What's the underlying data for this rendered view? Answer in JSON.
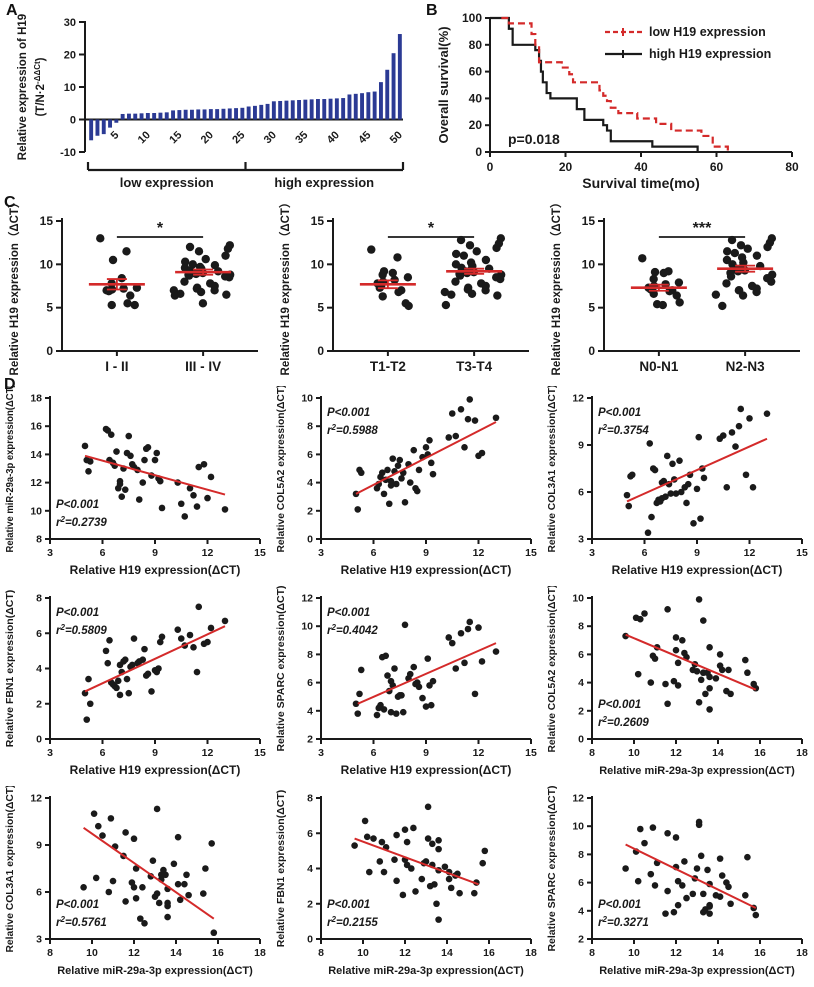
{
  "panel_labels": {
    "a": "A",
    "b": "B",
    "c": "C",
    "d": "D"
  },
  "palette": {
    "bar": "#2b3a94",
    "axis": "#1a1a1a",
    "dot": "#1a1a1a",
    "red": "#d42a2a"
  },
  "samples": {
    "h19": [
      5.0,
      5.1,
      5.2,
      5.3,
      6.2,
      6.3,
      6.4,
      6.5,
      6.6,
      6.7,
      6.8,
      6.9,
      7.0,
      7.0,
      7.1,
      7.2,
      7.3,
      7.4,
      7.5,
      7.6,
      7.7,
      7.8,
      8.0,
      8.1,
      8.3,
      8.4,
      8.5,
      8.6,
      8.8,
      9.0,
      9.1,
      9.2,
      9.3,
      9.4,
      10.3,
      10.5,
      10.7,
      11.0,
      11.2,
      11.4,
      11.5,
      11.8,
      12.0,
      12.2,
      13.0
    ],
    "mir29a": [
      14.6,
      13.6,
      12.8,
      13.5,
      15.8,
      15.7,
      13.6,
      15.4,
      13.4,
      13.2,
      14.2,
      11.6,
      12.1,
      11.9,
      11.0,
      13.0,
      11.5,
      14.1,
      15.3,
      13.9,
      13.3,
      13.1,
      12.9,
      10.8,
      12.0,
      13.6,
      14.4,
      14.5,
      12.5,
      13.6,
      14.1,
      12.3,
      12.1,
      10.2,
      12.0,
      10.5,
      9.6,
      11.6,
      11.1,
      10.3,
      13.1,
      13.3,
      10.9,
      12.4,
      10.1
    ],
    "col5a2": [
      3.2,
      2.1,
      4.9,
      4.7,
      3.6,
      3.9,
      4.4,
      4.7,
      3.2,
      4.2,
      4.9,
      2.5,
      3.8,
      4.1,
      5.7,
      4.8,
      3.9,
      5.2,
      5.6,
      4.3,
      4.7,
      2.6,
      5.3,
      4.0,
      6.3,
      3.6,
      3.4,
      4.9,
      5.8,
      6.5,
      6.0,
      7.0,
      5.4,
      4.6,
      7.2,
      8.9,
      7.3,
      9.2,
      6.5,
      8.5,
      9.9,
      8.4,
      5.9,
      6.1,
      8.6
    ],
    "col3a1": [
      5.8,
      5.1,
      7.0,
      7.1,
      3.4,
      9.1,
      4.4,
      7.5,
      7.4,
      5.3,
      5.5,
      5.4,
      5.6,
      6.6,
      6.7,
      5.7,
      8.3,
      6.5,
      5.9,
      7.8,
      6.8,
      5.9,
      8.0,
      6.0,
      6.3,
      5.3,
      6.5,
      7.1,
      4.0,
      6.2,
      9.5,
      4.3,
      7.5,
      6.9,
      9.4,
      9.6,
      6.3,
      9.8,
      8.9,
      10.2,
      11.3,
      7.1,
      10.7,
      6.3,
      11.0
    ],
    "fbn1": [
      2.6,
      1.1,
      3.4,
      2.0,
      5.0,
      4.3,
      5.6,
      3.2,
      3.1,
      3.0,
      2.9,
      3.3,
      4.2,
      2.5,
      3.8,
      4.4,
      4.5,
      3.4,
      2.6,
      4.1,
      4.2,
      5.7,
      4.3,
      4.4,
      4.5,
      5.1,
      3.6,
      3.7,
      2.7,
      3.9,
      3.8,
      4.0,
      5.5,
      5.8,
      6.2,
      5.7,
      5.3,
      5.9,
      5.2,
      3.8,
      7.5,
      5.4,
      5.5,
      6.3,
      6.7
    ],
    "sparc": [
      4.5,
      3.8,
      5.2,
      6.9,
      3.7,
      4.2,
      4.4,
      7.8,
      4.1,
      7.9,
      6.5,
      5.4,
      6.1,
      3.9,
      5.8,
      7.0,
      3.8,
      5.0,
      5.1,
      5.1,
      3.9,
      10.1,
      6.3,
      6.6,
      7.1,
      5.9,
      6.0,
      5.7,
      4.9,
      4.3,
      7.7,
      5.8,
      4.4,
      6.1,
      9.2,
      8.8,
      7.0,
      9.5,
      7.4,
      9.8,
      10.3,
      5.2,
      9.9,
      7.5,
      8.2
    ]
  },
  "chart_data": [
    {
      "id": "A",
      "type": "bar",
      "ylabel": "Relative expression of H19",
      "ylabel2": {
        "pre": "(T/N·2",
        "sup": "-ΔΔCt",
        "post": ")"
      },
      "ylim": [
        -10,
        30
      ],
      "yticks": [
        -10,
        0,
        10,
        20,
        30
      ],
      "xticks": [
        5,
        10,
        15,
        20,
        25,
        30,
        35,
        40,
        45,
        50
      ],
      "group_labels": [
        "low expression",
        "high expression"
      ],
      "group_split": 25,
      "values": [
        -6.4,
        -5.0,
        -4.5,
        -2.5,
        -1.0,
        1.7,
        1.8,
        1.8,
        1.9,
        2.0,
        2.0,
        2.1,
        2.2,
        2.8,
        2.9,
        3.0,
        3.0,
        3.1,
        3.1,
        3.2,
        3.2,
        3.3,
        3.4,
        3.5,
        3.6,
        4.0,
        4.2,
        4.5,
        4.8,
        5.6,
        5.7,
        5.8,
        5.9,
        6.0,
        6.1,
        6.2,
        6.3,
        6.3,
        6.4,
        6.5,
        6.6,
        7.7,
        7.9,
        8.1,
        8.4,
        8.6,
        11.5,
        15.3,
        20.4,
        26.3
      ]
    },
    {
      "id": "B",
      "type": "km",
      "xlabel": "Survival time(mo)",
      "ylabel": "Overall survival(%)",
      "xlim": [
        0,
        80
      ],
      "xticks": [
        0,
        20,
        40,
        60,
        80
      ],
      "ylim": [
        0,
        100
      ],
      "yticks": [
        0,
        20,
        40,
        60,
        80,
        100
      ],
      "p_text": "p=0.018",
      "legend": [
        {
          "label": "low H19 expression",
          "style": "dashed-red"
        },
        {
          "label": "high H19 expression",
          "style": "solid-black"
        }
      ],
      "series_low": [
        [
          3,
          100
        ],
        [
          5,
          96
        ],
        [
          10,
          96
        ],
        [
          11,
          88
        ],
        [
          12,
          80
        ],
        [
          13,
          67
        ],
        [
          18,
          67
        ],
        [
          19,
          63
        ],
        [
          21,
          58
        ],
        [
          22,
          52
        ],
        [
          27,
          52
        ],
        [
          29,
          46
        ],
        [
          30,
          42
        ],
        [
          31,
          38
        ],
        [
          32,
          33
        ],
        [
          34,
          29
        ],
        [
          38,
          29
        ],
        [
          39,
          25
        ],
        [
          43,
          25
        ],
        [
          44,
          21
        ],
        [
          47,
          21
        ],
        [
          48,
          16
        ],
        [
          55,
          16
        ],
        [
          56,
          12
        ],
        [
          58,
          12
        ],
        [
          59,
          4
        ],
        [
          62,
          4
        ],
        [
          63,
          0
        ]
      ],
      "series_high": [
        [
          0,
          100
        ],
        [
          4,
          100
        ],
        [
          5,
          92
        ],
        [
          6,
          80
        ],
        [
          11,
          80
        ],
        [
          12,
          76
        ],
        [
          13,
          68
        ],
        [
          13.5,
          60
        ],
        [
          14,
          52
        ],
        [
          15,
          44
        ],
        [
          16,
          40
        ],
        [
          22,
          40
        ],
        [
          23,
          32
        ],
        [
          25,
          24
        ],
        [
          29,
          24
        ],
        [
          30,
          20
        ],
        [
          31,
          16
        ],
        [
          32,
          8
        ],
        [
          42,
          8
        ],
        [
          43,
          4
        ],
        [
          54,
          4
        ],
        [
          55,
          0
        ]
      ]
    },
    {
      "id": "C1",
      "type": "dot",
      "ylabel": "Relative H19 expression（ΔCT）",
      "ylim": [
        0,
        15
      ],
      "yticks": [
        0,
        5,
        10,
        15
      ],
      "sig": "*",
      "groups": [
        {
          "label": "I - II",
          "mean": 7.7,
          "sem": 0.6,
          "values": [
            13.0,
            11.5,
            10.5,
            8.4,
            7.8,
            7.3,
            7.2,
            7.1,
            7.0,
            7.0,
            6.9,
            6.4,
            5.5,
            5.3,
            5.3
          ]
        },
        {
          "label": "III - IV",
          "mean": 9.1,
          "sem": 0.3,
          "values": [
            12.2,
            12.0,
            11.8,
            11.5,
            11.0,
            10.6,
            10.3,
            10.0,
            9.9,
            9.7,
            9.6,
            9.5,
            9.3,
            9.2,
            9.1,
            9.0,
            9.0,
            8.9,
            8.8,
            8.8,
            8.7,
            8.6,
            8.5,
            8.0,
            7.8,
            7.5,
            7.3,
            7.2,
            7.0,
            7.0,
            6.8,
            6.6,
            6.5,
            6.4,
            5.5
          ]
        }
      ]
    },
    {
      "id": "C2",
      "type": "dot",
      "ylabel": "Relative H19 expression（ΔCT）",
      "ylim": [
        0,
        15
      ],
      "yticks": [
        0,
        5,
        10,
        15
      ],
      "sig": "*",
      "groups": [
        {
          "label": "T1-T2",
          "mean": 7.7,
          "sem": 0.45,
          "values": [
            11.7,
            10.8,
            9.2,
            9.0,
            8.8,
            8.5,
            8.2,
            8.0,
            7.8,
            7.5,
            7.3,
            7.0,
            6.8,
            6.3,
            5.5,
            5.2
          ]
        },
        {
          "label": "T3-T4",
          "mean": 9.2,
          "sem": 0.3,
          "values": [
            13.0,
            12.8,
            12.4,
            12.2,
            11.9,
            11.5,
            11.2,
            11.0,
            10.5,
            10.2,
            10.0,
            9.8,
            9.6,
            9.5,
            9.3,
            9.2,
            9.1,
            9.0,
            8.9,
            8.8,
            8.7,
            8.5,
            8.3,
            8.0,
            7.8,
            7.5,
            7.3,
            7.1,
            7.0,
            6.8,
            6.6,
            6.5,
            6.4,
            5.3
          ]
        }
      ]
    },
    {
      "id": "C3",
      "type": "dot",
      "ylabel": "Relative H19 expression（ΔCT）",
      "ylim": [
        0,
        15
      ],
      "yticks": [
        0,
        5,
        10,
        15
      ],
      "sig": "***",
      "groups": [
        {
          "label": "N0-N1",
          "mean": 7.3,
          "sem": 0.35,
          "values": [
            10.7,
            9.2,
            9.1,
            9.0,
            8.3,
            7.9,
            7.7,
            7.5,
            7.3,
            7.2,
            7.1,
            7.0,
            6.9,
            6.6,
            6.4,
            5.6,
            5.4,
            5.3
          ]
        },
        {
          "label": "N2-N3",
          "mean": 9.5,
          "sem": 0.35,
          "values": [
            13.0,
            12.8,
            12.5,
            12.2,
            12.0,
            11.8,
            11.5,
            11.3,
            11.0,
            10.8,
            10.5,
            10.2,
            10.0,
            9.8,
            9.6,
            9.5,
            9.3,
            9.2,
            9.0,
            8.8,
            8.6,
            8.4,
            8.0,
            7.8,
            7.5,
            7.2,
            7.0,
            7.0,
            6.8,
            6.5,
            6.4,
            5.2
          ]
        }
      ]
    },
    {
      "id": "D1",
      "type": "scatter",
      "xkey": "h19",
      "ykey": "mir29a",
      "xlabel": "Relative H19 expression(ΔCT)",
      "ylabel": "Relative miR-29a-3p expression(ΔCT)",
      "xlim": [
        3,
        15
      ],
      "xticks": [
        3,
        6,
        9,
        12,
        15
      ],
      "ylim": [
        8,
        18
      ],
      "yticks": [
        8,
        10,
        12,
        14,
        16,
        18
      ],
      "p": "P<0.001",
      "r2": "0.2739",
      "line": [
        [
          5.0,
          13.9
        ],
        [
          13.0,
          11.15
        ]
      ],
      "ann": "bl"
    },
    {
      "id": "D2",
      "type": "scatter",
      "xkey": "h19",
      "ykey": "col5a2",
      "xlabel": "Relative H19 expression(ΔCT)",
      "ylabel": "Relative COL5A2 expression(ΔCT)",
      "xlim": [
        3,
        15
      ],
      "xticks": [
        3,
        6,
        9,
        12,
        15
      ],
      "ylim": [
        0,
        10
      ],
      "yticks": [
        0,
        2,
        4,
        6,
        8,
        10
      ],
      "p": "P<0.001",
      "r2": "0.5988",
      "line": [
        [
          5.0,
          3.2
        ],
        [
          13.0,
          8.3
        ]
      ],
      "ann": "tl"
    },
    {
      "id": "D3",
      "type": "scatter",
      "xkey": "h19",
      "ykey": "col3a1",
      "xlabel": "Relative H19 expression(ΔCT)",
      "ylabel": "Relative COL3A1 expression(ΔCT)",
      "xlim": [
        3,
        15
      ],
      "xticks": [
        3,
        6,
        9,
        12,
        15
      ],
      "ylim": [
        3,
        12
      ],
      "yticks": [
        3,
        6,
        9,
        12
      ],
      "p": "P<0.001",
      "r2": "0.3754",
      "line": [
        [
          5.0,
          5.4
        ],
        [
          13.0,
          9.4
        ]
      ],
      "ann": "tl"
    },
    {
      "id": "D4",
      "type": "scatter",
      "xkey": "h19",
      "ykey": "fbn1",
      "xlabel": "Relative H19 expression(ΔCT)",
      "ylabel": "Relative FBN1 expression(ΔCT)",
      "xlim": [
        3,
        15
      ],
      "xticks": [
        3,
        6,
        9,
        12,
        15
      ],
      "ylim": [
        0,
        8
      ],
      "yticks": [
        0,
        2,
        4,
        6,
        8
      ],
      "p": "P<0.001",
      "r2": "0.5809",
      "line": [
        [
          5.0,
          2.7
        ],
        [
          13.0,
          6.4
        ]
      ],
      "ann": "tl"
    },
    {
      "id": "D5",
      "type": "scatter",
      "xkey": "h19",
      "ykey": "sparc",
      "xlabel": "Relative H19 expression(ΔCT)",
      "ylabel": "Relative SPARC expression(ΔCT)",
      "xlim": [
        3,
        15
      ],
      "xticks": [
        3,
        6,
        9,
        12,
        15
      ],
      "ylim": [
        2,
        12
      ],
      "yticks": [
        2,
        4,
        6,
        8,
        10,
        12
      ],
      "p": "P<0.001",
      "r2": "0.4042",
      "line": [
        [
          5.1,
          4.5
        ],
        [
          13.0,
          8.8
        ]
      ],
      "ann": "tl"
    },
    {
      "id": "D6",
      "type": "scatter",
      "xkey": "mir29a",
      "ykey": "col5a2",
      "xlabel": "Relative miR-29a-3p expression(ΔCT)",
      "ylabel": "Relative COL5A2 expression(ΔCT)",
      "xlim": [
        8,
        18
      ],
      "xticks": [
        8,
        10,
        12,
        14,
        16,
        18
      ],
      "ylim": [
        0,
        10
      ],
      "yticks": [
        0,
        2,
        4,
        6,
        8,
        10
      ],
      "p": "P<0.001",
      "r2": "0.2609",
      "line": [
        [
          9.6,
          7.4
        ],
        [
          15.8,
          3.5
        ]
      ],
      "ann": "bl"
    },
    {
      "id": "D7",
      "type": "scatter",
      "xkey": "mir29a",
      "ykey": "col3a1",
      "xlabel": "Relative miR-29a-3p expression(ΔCT)",
      "ylabel": "Relative COL3A1 expression(ΔCT)",
      "xlim": [
        8,
        18
      ],
      "xticks": [
        8,
        10,
        12,
        14,
        16,
        18
      ],
      "ylim": [
        3,
        12
      ],
      "yticks": [
        3,
        6,
        9,
        12
      ],
      "p": "P<0.001",
      "r2": "0.5761",
      "line": [
        [
          9.6,
          10.1
        ],
        [
          15.8,
          4.3
        ]
      ],
      "ann": "bl"
    },
    {
      "id": "D8",
      "type": "scatter",
      "xkey": "mir29a",
      "ykey": "fbn1",
      "xlabel": "Relative miR-29a-3p expression(ΔCT)",
      "ylabel": "Relative FBN1 expression(ΔCT)",
      "xlim": [
        8,
        18
      ],
      "xticks": [
        8,
        10,
        12,
        14,
        16,
        18
      ],
      "ylim": [
        0,
        8
      ],
      "yticks": [
        0,
        2,
        4,
        6,
        8
      ],
      "p": "P<0.001",
      "r2": "0.2155",
      "line": [
        [
          9.6,
          5.7
        ],
        [
          15.5,
          3.1
        ]
      ],
      "ann": "bl"
    },
    {
      "id": "D9",
      "type": "scatter",
      "xkey": "mir29a",
      "ykey": "sparc",
      "xlabel": "Relative miR-29a-3p expression(ΔCT)",
      "ylabel": "Relative SPARC expression(ΔCT)",
      "xlim": [
        8,
        18
      ],
      "xticks": [
        8,
        10,
        12,
        14,
        16,
        18
      ],
      "ylim": [
        2,
        12
      ],
      "yticks": [
        2,
        4,
        6,
        8,
        10,
        12
      ],
      "p": "P<0.001",
      "r2": "0.3271",
      "line": [
        [
          9.6,
          8.7
        ],
        [
          15.8,
          4.2
        ]
      ],
      "ann": "bl"
    }
  ]
}
